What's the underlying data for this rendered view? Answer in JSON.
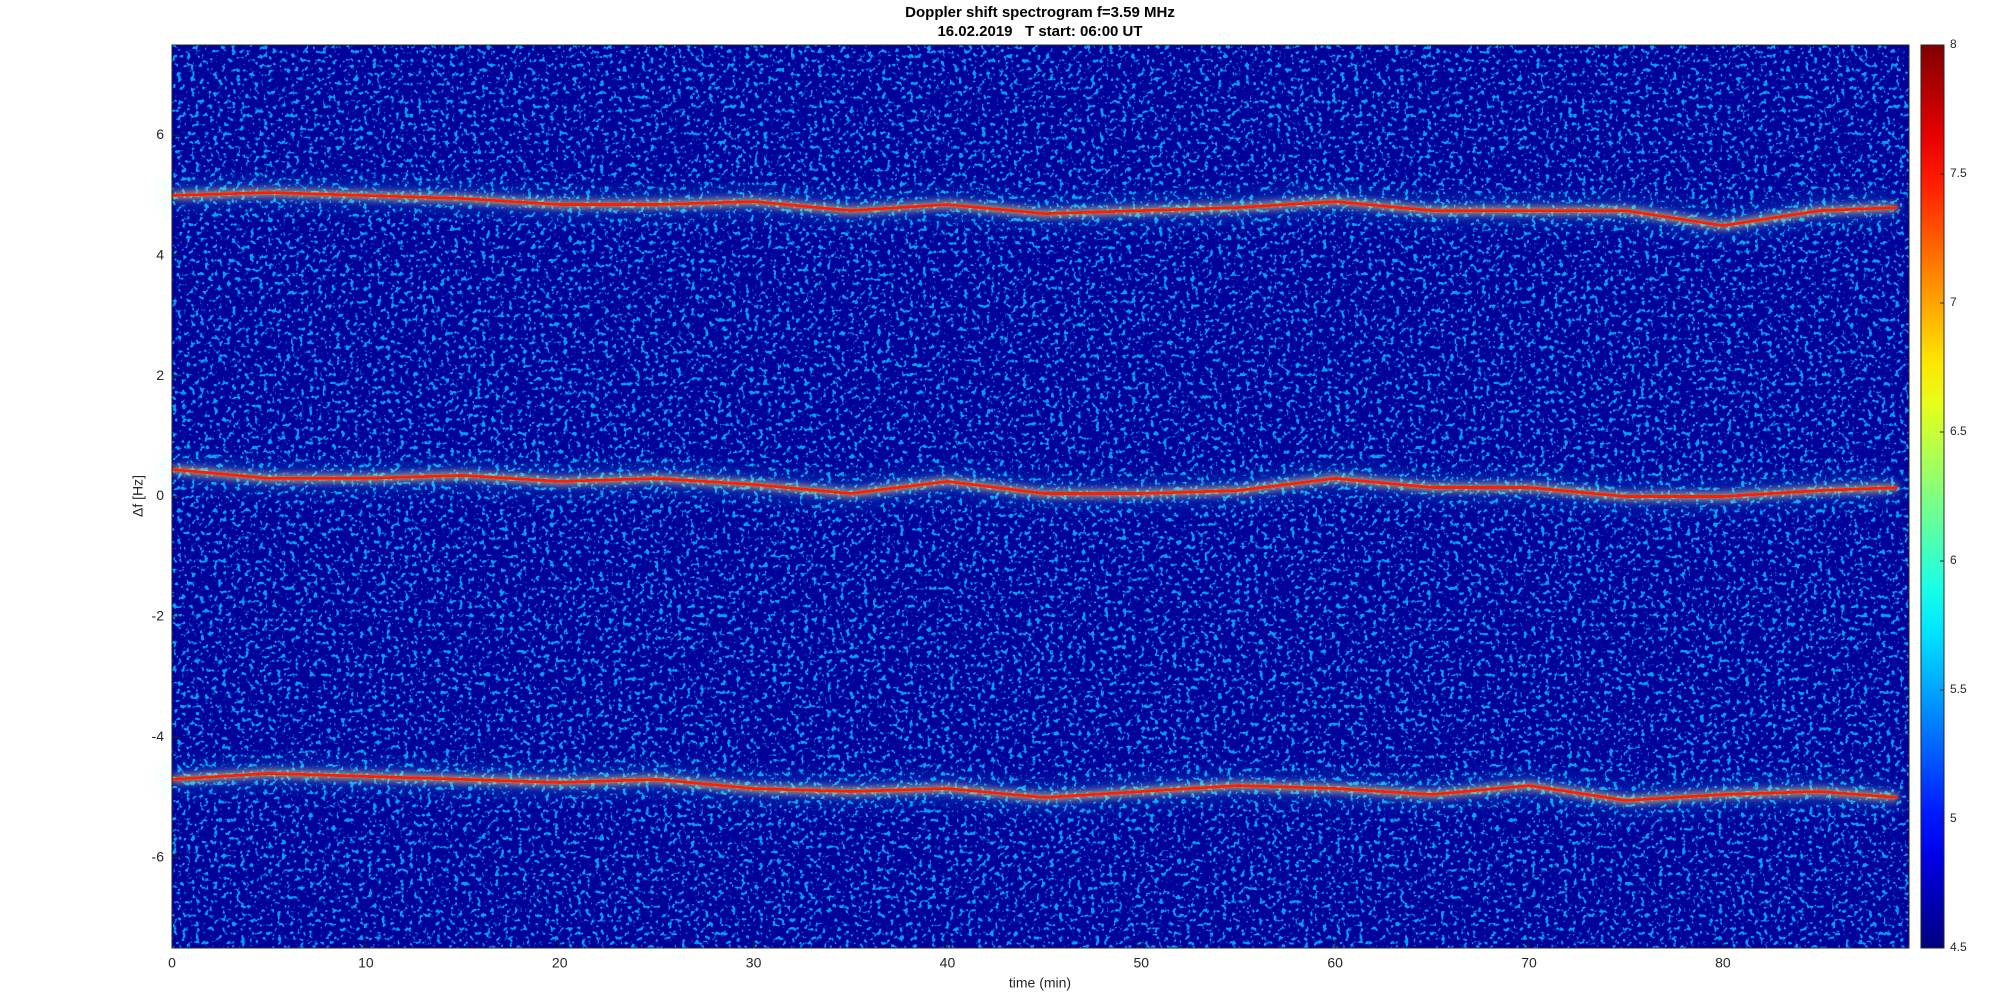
{
  "chart_data": {
    "type": "spectrogram",
    "title": "Doppler shift spectrogram f=3.59 MHz",
    "subtitle": "16.02.2019   T start: 06:00 UT",
    "xlabel": "time (min)",
    "ylabel": "Δf [Hz]",
    "x": [
      0,
      5,
      10,
      15,
      20,
      25,
      30,
      35,
      40,
      45,
      50,
      55,
      60,
      65,
      70,
      75,
      80,
      85,
      89
    ],
    "series": [
      {
        "color": "#ff1a00",
        "values": [
          5.0,
          5.05,
          5.0,
          4.95,
          4.85,
          4.85,
          4.9,
          4.75,
          4.85,
          4.7,
          4.75,
          4.8,
          4.9,
          4.75,
          4.75,
          4.75,
          4.5,
          4.75,
          4.8
        ]
      },
      {
        "color": "#ff1a00",
        "values": [
          0.45,
          0.3,
          0.3,
          0.35,
          0.25,
          0.3,
          0.2,
          0.05,
          0.25,
          0.05,
          0.05,
          0.1,
          0.3,
          0.15,
          0.15,
          0.0,
          0.0,
          0.1,
          0.15
        ]
      },
      {
        "color": "#ff1a00",
        "values": [
          -4.7,
          -4.6,
          -4.65,
          -4.7,
          -4.75,
          -4.7,
          -4.85,
          -4.9,
          -4.85,
          -5.0,
          -4.9,
          -4.8,
          -4.85,
          -4.95,
          -4.8,
          -5.05,
          -4.95,
          -4.9,
          -5.0
        ]
      }
    ],
    "xlim": [
      0,
      89.6
    ],
    "xticks": [
      0,
      10,
      20,
      30,
      40,
      50,
      60,
      70,
      80
    ],
    "ylim": [
      -7.5,
      7.5
    ],
    "yticks": [
      -6,
      -4,
      -2,
      0,
      2,
      4,
      6
    ],
    "colorbar": {
      "lim": [
        4.5,
        8
      ],
      "ticks": [
        4.5,
        5,
        5.5,
        6,
        6.5,
        7,
        7.5,
        8
      ]
    },
    "background_color": "#00009a"
  }
}
